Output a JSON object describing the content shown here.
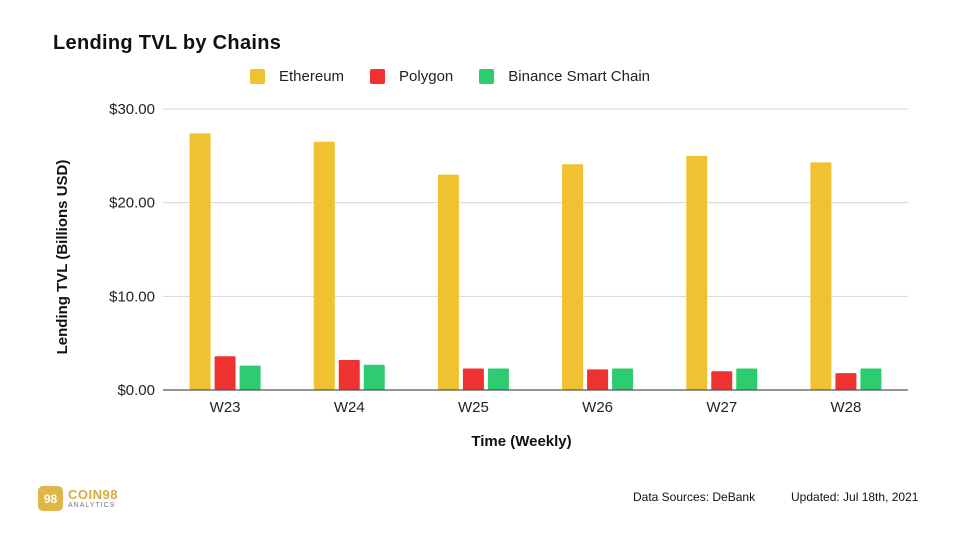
{
  "chart_data": {
    "type": "bar",
    "title": "Lending TVL by Chains",
    "xlabel": "Time (Weekly)",
    "ylabel": "Lending TVL (Billions USD)",
    "categories": [
      "W23",
      "W24",
      "W25",
      "W26",
      "W27",
      "W28"
    ],
    "ylim": [
      0,
      30
    ],
    "yticks": [
      0,
      10,
      20,
      30
    ],
    "ytick_labels": [
      "$0.00",
      "$10.00",
      "$20.00",
      "$30.00"
    ],
    "grid": true,
    "legend_position": "top",
    "series": [
      {
        "name": "Ethereum",
        "color": "#f0c232",
        "values": [
          27.4,
          26.5,
          23.0,
          24.1,
          25.0,
          24.3
        ]
      },
      {
        "name": "Polygon",
        "color": "#ee3232",
        "values": [
          3.6,
          3.2,
          2.3,
          2.2,
          2.0,
          1.8
        ]
      },
      {
        "name": "Binance Smart Chain",
        "color": "#2ecc71",
        "values": [
          2.6,
          2.7,
          2.3,
          2.3,
          2.3,
          2.3
        ]
      }
    ]
  },
  "footer": {
    "logo_mark": "98",
    "logo_name": "COIN98",
    "logo_sub": "ANALYTICS",
    "source": "Data Sources: DeBank",
    "updated": "Updated: Jul 18th, 2021"
  }
}
